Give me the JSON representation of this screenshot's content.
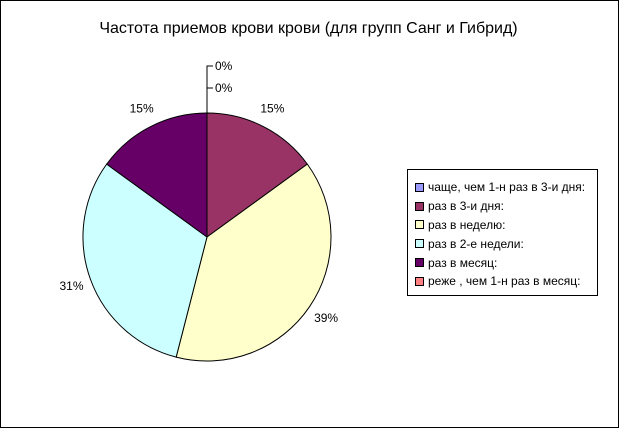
{
  "chart_data": {
    "type": "pie",
    "title": "Частота приемов крови крови (для групп Санг и Гибрид)",
    "slices": [
      {
        "label": "чаще, чем 1-н раз в 3-и дня:",
        "value": 0,
        "display": "0%",
        "color": "#9999ff"
      },
      {
        "label": "раз в 3-и дня:",
        "value": 15,
        "display": "15%",
        "color": "#993366"
      },
      {
        "label": "раз в неделю:",
        "value": 39,
        "display": "39%",
        "color": "#ffffcc"
      },
      {
        "label": "раз в 2-е недели:",
        "value": 31,
        "display": "31%",
        "color": "#ccffff"
      },
      {
        "label": "раз в месяц:",
        "value": 15,
        "display": "15%",
        "color": "#660066"
      },
      {
        "label": "реже , чем 1-н раз в месяц:",
        "value": 0,
        "display": "0%",
        "color": "#ff8080"
      }
    ],
    "legend_position": "right"
  }
}
